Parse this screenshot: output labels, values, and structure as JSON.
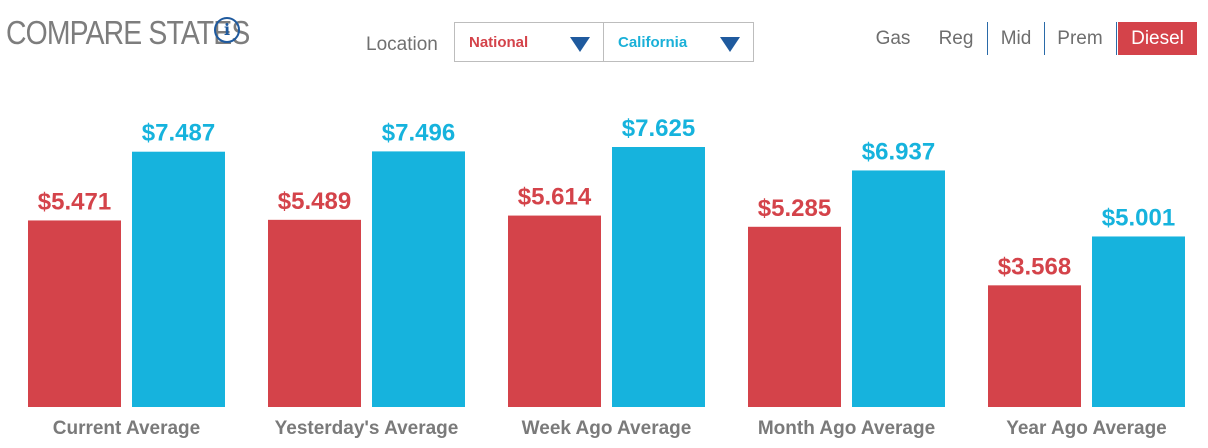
{
  "header": {
    "title": "COMPARE STATES",
    "info_icon": "info-icon",
    "location_label": "Location",
    "dropdowns": [
      {
        "value": "National",
        "color": "#d4434a"
      },
      {
        "value": "California",
        "color": "#1ab0d8"
      }
    ],
    "fuel_tabs": [
      {
        "label": "Gas",
        "active": false
      },
      {
        "label": "Reg",
        "active": false
      },
      {
        "label": "Mid",
        "active": false
      },
      {
        "label": "Prem",
        "active": false
      },
      {
        "label": "Diesel",
        "active": true
      }
    ]
  },
  "chart_data": {
    "type": "bar",
    "categories": [
      "Current Average",
      "Yesterday's Average",
      "Week Ago Average",
      "Month Ago Average",
      "Year Ago Average"
    ],
    "series": [
      {
        "name": "National",
        "color": "#d4434a",
        "values": [
          5.471,
          5.489,
          5.614,
          5.285,
          3.568
        ],
        "labels": [
          "$5.471",
          "$5.489",
          "$5.614",
          "$5.285",
          "$3.568"
        ]
      },
      {
        "name": "California",
        "color": "#16b3dd",
        "values": [
          7.487,
          7.496,
          7.625,
          6.937,
          5.001
        ],
        "labels": [
          "$7.487",
          "$7.496",
          "$7.625",
          "$6.937",
          "$5.001"
        ]
      }
    ],
    "ylim": [
      0,
      7.625
    ],
    "grid": false,
    "legend": "none"
  }
}
